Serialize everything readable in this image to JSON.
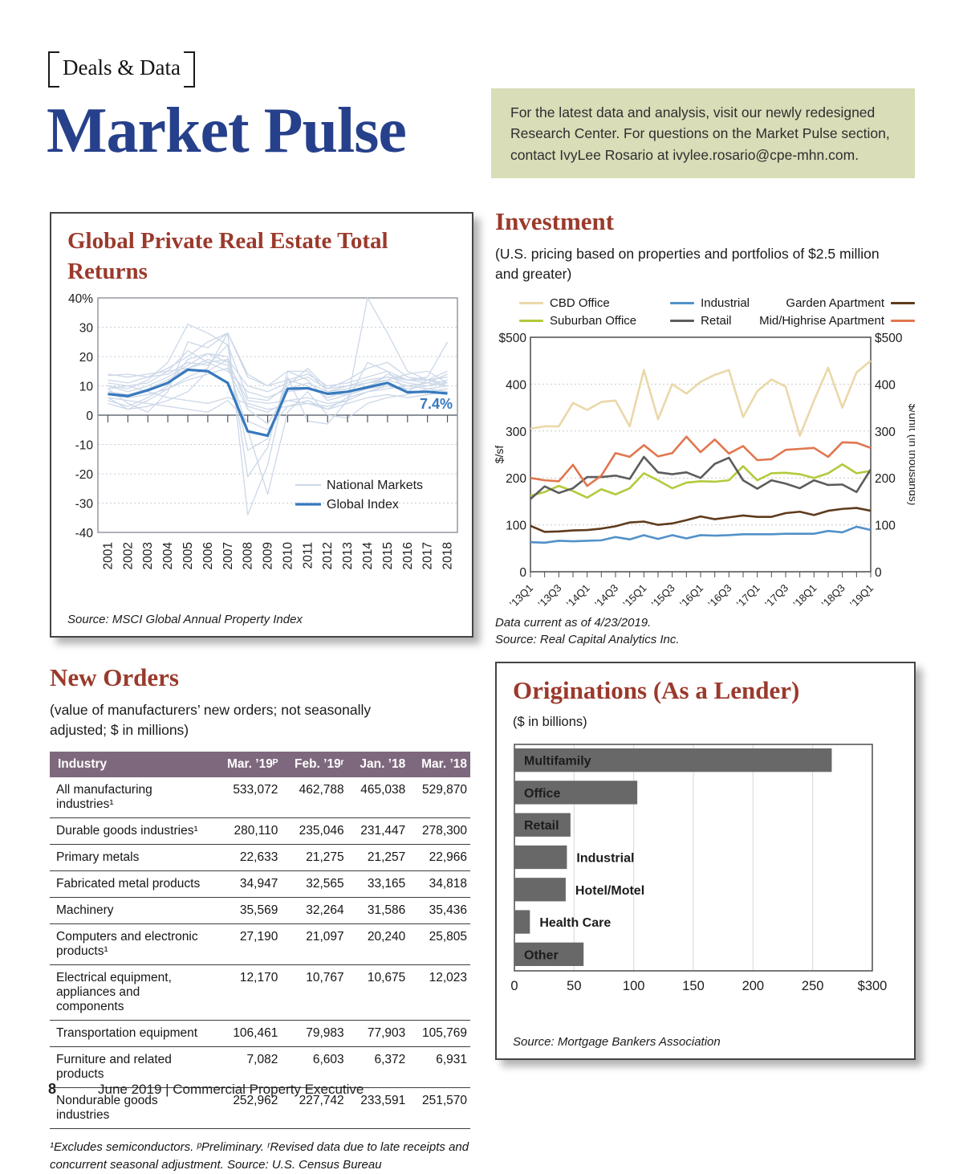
{
  "page": {
    "tag": "Deals & Data",
    "title": "Market Pulse",
    "footer": {
      "page_number": "8",
      "text": "June 2019  |  Commercial Property Executive"
    }
  },
  "info_box": {
    "text": "For the latest data and analysis, visit our newly redesigned Research Center. For questions on the Market Pulse section, contact IvyLee Rosario at ivylee.rosario@cpe-mhn.com."
  },
  "colors": {
    "heading_red": "#9a3a2c",
    "title_blue": "#26408b",
    "info_box_bg": "#d9ddb8",
    "table_header_bg": "#7e687d",
    "bar_gray": "#686868",
    "global_index_blue": "#3779bd",
    "national_markets_gray": "#ccd8e8"
  },
  "chart_data": [
    {
      "id": "global_returns",
      "type": "line",
      "title": "Global Private Real Estate Total Returns",
      "ylim": [
        -40,
        40
      ],
      "yticks": [
        40,
        30,
        20,
        10,
        0,
        -10,
        -20,
        -30,
        -40
      ],
      "ytick_labels": [
        "40%",
        "30",
        "20",
        "10",
        "0",
        "-10",
        "-20",
        "-30",
        "-40"
      ],
      "categories": [
        "2001",
        "2002",
        "2003",
        "2004",
        "2005",
        "2006",
        "2007",
        "2008",
        "2009",
        "2010",
        "2011",
        "2012",
        "2013",
        "2014",
        "2015",
        "2016",
        "2017",
        "2018"
      ],
      "series": [
        {
          "name": "Global Index",
          "color": "#3779bd",
          "values": [
            7.2,
            6.5,
            8.5,
            11,
            15.5,
            15,
            11,
            -5.5,
            -7,
            9,
            9.2,
            7.3,
            8,
            9.5,
            11,
            7.8,
            8,
            7.4
          ]
        }
      ],
      "national": {
        "name": "National Markets",
        "color": "#ccd8e8",
        "values": [
          [
            13.5,
            14,
            13,
            16,
            20,
            25,
            28,
            13,
            10,
            15,
            15,
            8,
            10,
            12,
            13,
            12,
            13,
            25
          ],
          [
            10,
            9,
            12,
            18,
            31,
            28,
            24,
            -21,
            -11,
            15,
            12,
            5,
            7,
            9,
            14,
            12,
            12,
            15
          ],
          [
            9,
            4,
            1,
            8,
            25,
            23,
            28,
            -34,
            -17,
            13,
            -2,
            -3,
            5,
            8,
            9,
            10,
            11,
            14
          ],
          [
            5,
            3,
            6,
            10,
            19,
            21,
            18,
            5,
            4,
            5,
            6,
            4,
            5,
            18,
            15,
            8,
            12,
            11
          ],
          [
            11,
            10,
            8,
            6,
            5,
            4,
            6,
            4,
            2,
            3,
            4,
            3,
            5,
            40,
            28,
            15,
            12,
            10
          ],
          [
            8,
            7,
            9,
            12,
            16,
            19,
            17,
            -5,
            -27,
            1,
            8,
            0,
            -1,
            4,
            6,
            7,
            9,
            8
          ],
          [
            12,
            11,
            13,
            14,
            18,
            17,
            24,
            6,
            5,
            10,
            16,
            9,
            12,
            16,
            18,
            13,
            12,
            13
          ],
          [
            6,
            2,
            3,
            5,
            8,
            15,
            19,
            3,
            1,
            5,
            4,
            2,
            6,
            8,
            10,
            9,
            10,
            11
          ],
          [
            10,
            8,
            10,
            13,
            17,
            21,
            20,
            -12,
            -8,
            12,
            10,
            6,
            8,
            10,
            12,
            10,
            9,
            10
          ],
          [
            7,
            6,
            7,
            9,
            12,
            14,
            16,
            2,
            -3,
            8,
            9,
            7,
            7,
            9,
            10,
            8,
            8,
            9
          ],
          [
            9,
            10,
            11,
            15,
            22,
            18,
            15,
            8,
            6,
            9,
            11,
            8,
            9,
            11,
            13,
            11,
            10,
            12
          ],
          [
            4,
            2,
            5,
            9,
            13,
            16,
            28,
            14,
            10,
            12,
            14,
            10,
            11,
            13,
            15,
            12,
            11,
            10
          ],
          [
            14,
            13,
            14,
            15,
            16,
            18,
            19,
            10,
            8,
            11,
            13,
            9,
            10,
            11,
            12,
            14,
            15,
            11
          ],
          [
            6,
            5,
            4,
            3,
            2,
            1,
            5,
            -2,
            -5,
            3,
            5,
            2,
            4,
            6,
            7,
            6,
            7,
            8
          ]
        ]
      },
      "legend": [
        {
          "label": "National Markets",
          "color": "#ccd8e8"
        },
        {
          "label": "Global Index",
          "color": "#3779bd"
        }
      ],
      "annotation": {
        "text": "7.4%"
      },
      "source": "Source: MSCI Global Annual Property Index"
    },
    {
      "id": "investment",
      "type": "line",
      "title": "Investment",
      "subtitle": "(U.S. pricing based on properties and portfolios of $2.5 million and greater)",
      "ylabel_left": "$/sf",
      "ylabel_right": "$/unit (in thousands)",
      "ylim": [
        0,
        500
      ],
      "ytick_labels": [
        "$500",
        "400",
        "300",
        "200",
        "100",
        "0"
      ],
      "x_labels": [
        "’13Q1",
        "’13Q3",
        "’14Q1",
        "’14Q3",
        "’15Q1",
        "’15Q3",
        "’16Q1",
        "’16Q3",
        "’17Q1",
        "’17Q3",
        "’18Q1",
        "’18Q3",
        "’19Q1"
      ],
      "series": [
        {
          "name": "CBD Office",
          "color": "#ead8a9",
          "values": [
            305,
            310,
            310,
            360,
            345,
            362,
            365,
            310,
            430,
            325,
            400,
            380,
            405,
            420,
            430,
            330,
            385,
            410,
            395,
            290,
            365,
            435,
            350,
            425,
            450
          ]
        },
        {
          "name": "Suburban Office",
          "color": "#b2ca3c",
          "values": [
            162,
            170,
            183,
            172,
            158,
            176,
            165,
            178,
            210,
            195,
            178,
            190,
            193,
            192,
            195,
            225,
            195,
            210,
            211,
            208,
            200,
            210,
            229,
            210,
            215
          ]
        },
        {
          "name": "Industrial",
          "color": "#5291c9",
          "values": [
            63,
            62,
            66,
            65,
            66,
            67,
            74,
            69,
            78,
            70,
            78,
            71,
            78,
            77,
            78,
            80,
            80,
            80,
            81,
            81,
            81,
            87,
            84,
            96,
            89
          ]
        },
        {
          "name": "Retail",
          "color": "#5c5c5c",
          "values": [
            155,
            182,
            168,
            178,
            202,
            202,
            205,
            198,
            245,
            212,
            208,
            212,
            200,
            230,
            243,
            195,
            177,
            195,
            188,
            178,
            195,
            185,
            186,
            170,
            218
          ]
        },
        {
          "name": "Garden Apartment",
          "color": "#5f3b1c",
          "values": [
            98,
            85,
            86,
            88,
            89,
            92,
            97,
            105,
            107,
            100,
            103,
            110,
            118,
            112,
            116,
            120,
            117,
            117,
            125,
            128,
            121,
            130,
            134,
            136,
            130
          ]
        },
        {
          "name": "Mid/Highrise Apartment",
          "color": "#e1764e",
          "values": [
            200,
            195,
            193,
            228,
            183,
            205,
            253,
            245,
            270,
            246,
            253,
            288,
            255,
            282,
            252,
            268,
            238,
            240,
            260,
            262,
            264,
            245,
            276,
            275,
            264
          ]
        }
      ],
      "note1": "Data current as of 4/23/2019.",
      "note2": "Source: Real Capital Analytics Inc."
    },
    {
      "id": "originations",
      "type": "bar",
      "title": "Originations (As a Lender)",
      "subtitle": "($ in billions)",
      "categories": [
        "Multifamily",
        "Office",
        "Retail",
        "Industrial",
        "Hotel/Motel",
        "Health Care",
        "Other"
      ],
      "values": [
        266,
        103,
        47,
        44,
        43,
        13,
        58
      ],
      "label_inside": [
        true,
        true,
        true,
        false,
        false,
        false,
        true
      ],
      "xlim": [
        0,
        300
      ],
      "xtick_labels": [
        "0",
        "50",
        "100",
        "150",
        "200",
        "250",
        "$300"
      ],
      "bar_color": "#686868",
      "source": "Source: Mortgage Bankers Association"
    }
  ],
  "new_orders": {
    "title": "New Orders",
    "subtitle": "(value of manufacturers’ new orders; not seasonally adjusted; $ in millions)",
    "columns": [
      "Industry",
      "Mar. ’19ᴾ",
      "Feb. ’19ʳ",
      "Jan. ’18",
      "Mar. ’18"
    ],
    "rows": [
      [
        "All manufacturing industries¹",
        "533,072",
        "462,788",
        "465,038",
        "529,870"
      ],
      [
        "Durable goods industries¹",
        "280,110",
        "235,046",
        "231,447",
        "278,300"
      ],
      [
        "Primary metals",
        "22,633",
        "21,275",
        "21,257",
        "22,966"
      ],
      [
        "Fabricated metal products",
        "34,947",
        "32,565",
        "33,165",
        "34,818"
      ],
      [
        "Machinery",
        "35,569",
        "32,264",
        "31,586",
        "35,436"
      ],
      [
        "Computers and electronic products¹",
        "27,190",
        "21,097",
        "20,240",
        "25,805"
      ],
      [
        "Electrical equipment, appliances and components",
        "12,170",
        "10,767",
        "10,675",
        "12,023"
      ],
      [
        "Transportation equipment",
        "106,461",
        "79,983",
        "77,903",
        "105,769"
      ],
      [
        "Furniture and related products",
        "7,082",
        "6,603",
        "6,372",
        "6,931"
      ],
      [
        "Nondurable goods industries",
        "252,962",
        "227,742",
        "233,591",
        "251,570"
      ]
    ],
    "footnote": "¹Excludes semiconductors. ᵖPreliminary. ʳRevised data due to late receipts and concurrent seasonal adjustment. Source: U.S. Census Bureau"
  }
}
